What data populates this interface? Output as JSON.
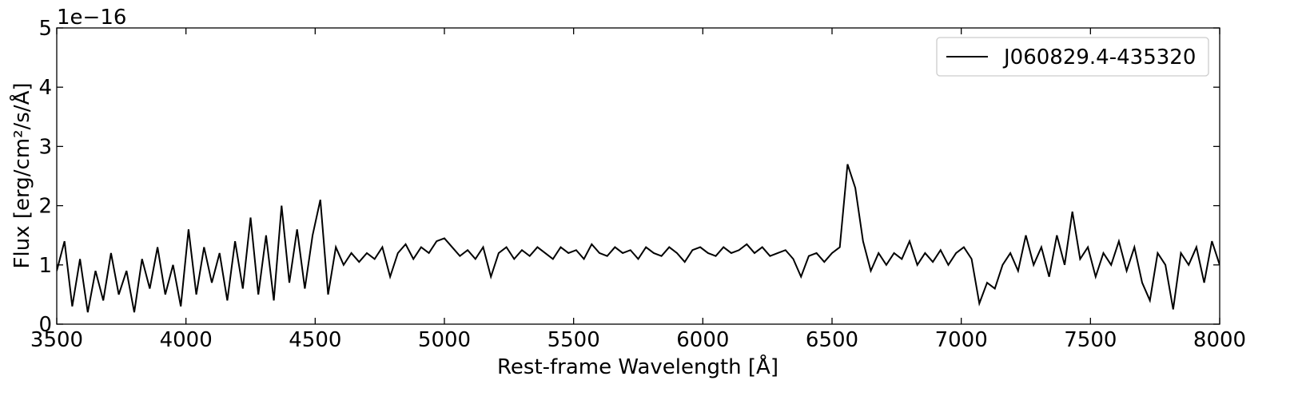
{
  "chart_data": {
    "type": "line",
    "xlabel": "Rest-frame Wavelength [Å]",
    "ylabel": "Flux [erg/cm²/s/Å]",
    "offset_text": "1e−16",
    "xlim": [
      3500,
      8000
    ],
    "ylim": [
      0,
      5
    ],
    "xticks": [
      3500,
      4000,
      4500,
      5000,
      5500,
      6000,
      6500,
      7000,
      7500,
      8000
    ],
    "yticks": [
      0,
      1,
      2,
      3,
      4,
      5
    ],
    "legend": "upper right",
    "x": [
      3500,
      3530,
      3560,
      3590,
      3620,
      3650,
      3680,
      3710,
      3740,
      3770,
      3800,
      3830,
      3860,
      3890,
      3920,
      3950,
      3980,
      4010,
      4040,
      4070,
      4100,
      4130,
      4160,
      4190,
      4220,
      4250,
      4280,
      4310,
      4340,
      4370,
      4400,
      4430,
      4460,
      4490,
      4520,
      4550,
      4580,
      4610,
      4640,
      4670,
      4700,
      4730,
      4760,
      4790,
      4820,
      4850,
      4880,
      4910,
      4940,
      4970,
      5000,
      5030,
      5060,
      5090,
      5120,
      5150,
      5180,
      5210,
      5240,
      5270,
      5300,
      5330,
      5360,
      5390,
      5420,
      5450,
      5480,
      5510,
      5540,
      5570,
      5600,
      5630,
      5660,
      5690,
      5720,
      5750,
      5780,
      5810,
      5840,
      5870,
      5900,
      5930,
      5960,
      5990,
      6020,
      6050,
      6080,
      6110,
      6140,
      6170,
      6200,
      6230,
      6260,
      6290,
      6320,
      6350,
      6380,
      6410,
      6440,
      6470,
      6500,
      6530,
      6560,
      6590,
      6620,
      6650,
      6680,
      6710,
      6740,
      6770,
      6800,
      6830,
      6860,
      6890,
      6920,
      6950,
      6980,
      7010,
      7040,
      7070,
      7100,
      7130,
      7160,
      7190,
      7220,
      7250,
      7280,
      7310,
      7340,
      7370,
      7400,
      7430,
      7460,
      7490,
      7520,
      7550,
      7580,
      7610,
      7640,
      7670,
      7700,
      7730,
      7760,
      7790,
      7820,
      7850,
      7880,
      7910,
      7940,
      7970,
      8000
    ],
    "series": [
      {
        "name": "J060829.4-435320",
        "color": "#000000",
        "values": [
          0.9,
          1.4,
          0.3,
          1.1,
          0.2,
          0.9,
          0.4,
          1.2,
          0.5,
          0.9,
          0.2,
          1.1,
          0.6,
          1.3,
          0.5,
          1.0,
          0.3,
          1.6,
          0.5,
          1.3,
          0.7,
          1.2,
          0.4,
          1.4,
          0.6,
          1.8,
          0.5,
          1.5,
          0.4,
          2.0,
          0.7,
          1.6,
          0.6,
          1.5,
          2.1,
          0.5,
          1.3,
          1.0,
          1.2,
          1.05,
          1.2,
          1.1,
          1.3,
          0.8,
          1.2,
          1.35,
          1.1,
          1.3,
          1.2,
          1.4,
          1.45,
          1.3,
          1.15,
          1.25,
          1.1,
          1.3,
          0.8,
          1.2,
          1.3,
          1.1,
          1.25,
          1.15,
          1.3,
          1.2,
          1.1,
          1.3,
          1.2,
          1.25,
          1.1,
          1.35,
          1.2,
          1.15,
          1.3,
          1.2,
          1.25,
          1.1,
          1.3,
          1.2,
          1.15,
          1.3,
          1.2,
          1.05,
          1.25,
          1.3,
          1.2,
          1.15,
          1.3,
          1.2,
          1.25,
          1.35,
          1.2,
          1.3,
          1.15,
          1.2,
          1.25,
          1.1,
          0.8,
          1.15,
          1.2,
          1.05,
          1.2,
          1.3,
          2.7,
          2.3,
          1.4,
          0.9,
          1.2,
          1.0,
          1.2,
          1.1,
          1.4,
          1.0,
          1.2,
          1.05,
          1.25,
          1.0,
          1.2,
          1.3,
          1.1,
          0.35,
          0.7,
          0.6,
          1.0,
          1.2,
          0.9,
          1.5,
          1.0,
          1.3,
          0.8,
          1.5,
          1.0,
          1.9,
          1.1,
          1.3,
          0.8,
          1.2,
          1.0,
          1.4,
          0.9,
          1.3,
          0.7,
          0.4,
          1.2,
          1.0,
          0.25,
          1.2,
          1.0,
          1.3,
          0.7,
          1.4,
          1.0
        ]
      }
    ]
  }
}
